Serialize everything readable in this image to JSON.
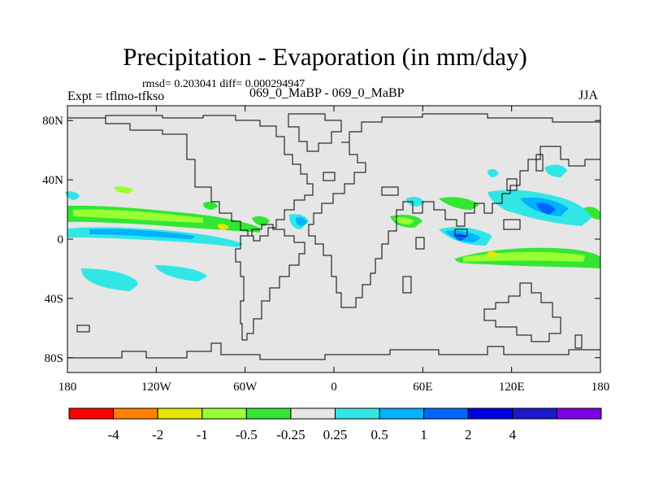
{
  "title": "Precipitation - Evaporation (in mm/day)",
  "stats": "rmsd= 0.203041 diff= 0.000294947",
  "experiment": "Expt = tflmo-tfkso",
  "case": "069_0_MaBP - 069_0_MaBP",
  "season": "JJA",
  "map": {
    "lon_range": [
      -180,
      180
    ],
    "lat_range": [
      -90,
      90
    ],
    "ocean_color": "#e6e6e6",
    "coast_color": "#000000",
    "lat_ticks": [
      {
        "value": 80,
        "label": "80N"
      },
      {
        "value": 40,
        "label": "40N"
      },
      {
        "value": 0,
        "label": "0"
      },
      {
        "value": -40,
        "label": "40S"
      },
      {
        "value": -80,
        "label": "80S"
      }
    ],
    "lon_ticks": [
      {
        "value": -180,
        "label": "180"
      },
      {
        "value": -120,
        "label": "120W"
      },
      {
        "value": -60,
        "label": "60W"
      },
      {
        "value": 0,
        "label": "0"
      },
      {
        "value": 60,
        "label": "60E"
      },
      {
        "value": 120,
        "label": "120E"
      },
      {
        "value": 180,
        "label": "180"
      }
    ]
  },
  "colorbar": {
    "colors": [
      "#ff0000",
      "#ff7f00",
      "#e6e600",
      "#99ff33",
      "#33e633",
      "#e6e6e6",
      "#33e6e6",
      "#00b2ff",
      "#0066ff",
      "#0000e6",
      "#1a1acc",
      "#8000e6"
    ],
    "labels": [
      "-4",
      "-2",
      "-1",
      "-0.5",
      "-0.25",
      "0.25",
      "0.5",
      "1",
      "2",
      "4"
    ]
  }
}
